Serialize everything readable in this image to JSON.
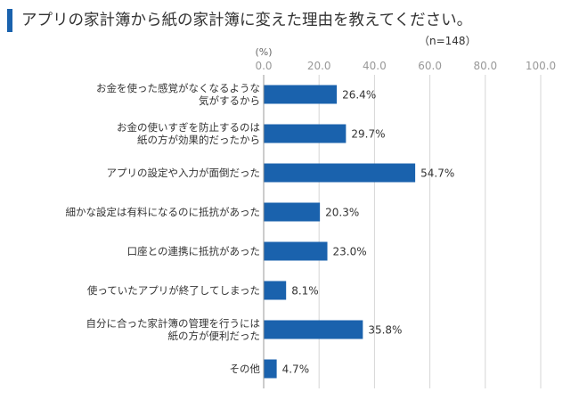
{
  "header": {
    "title": "アプリの家計簿から紙の家計簿に変えた理由を教えてください。",
    "sample": "（n=148）"
  },
  "colors": {
    "accent": "#1a62ad",
    "bar": "#1a62ad",
    "grid": "#d6d6d6",
    "tick": "#999999"
  },
  "chart_data": {
    "type": "bar",
    "orientation": "horizontal",
    "unit": "(%)",
    "xlim": [
      0,
      100
    ],
    "ticks": [
      0,
      20,
      40,
      60,
      80,
      100
    ],
    "tick_labels": [
      "0.0",
      "20.0",
      "40.0",
      "60.0",
      "80.0",
      "100.0"
    ],
    "grid": true,
    "categories": [
      [
        "お金を使った感覚がなくなるような",
        "気がするから"
      ],
      [
        "お金の使いすぎを防止するのは",
        "紙の方が効果的だったから"
      ],
      [
        "アプリの設定や入力が面倒だった"
      ],
      [
        "細かな設定は有料になるのに抵抗があった"
      ],
      [
        "口座との連携に抵抗があった"
      ],
      [
        "使っていたアプリが終了してしまった"
      ],
      [
        "自分に合った家計簿の管理を行うには",
        "紙の方が便利だった"
      ],
      [
        "その他"
      ]
    ],
    "values": [
      26.4,
      29.7,
      54.7,
      20.3,
      23.0,
      8.1,
      35.8,
      4.7
    ],
    "value_labels": [
      "26.4%",
      "29.7%",
      "54.7%",
      "20.3%",
      "23.0%",
      "8.1%",
      "35.8%",
      "4.7%"
    ]
  }
}
